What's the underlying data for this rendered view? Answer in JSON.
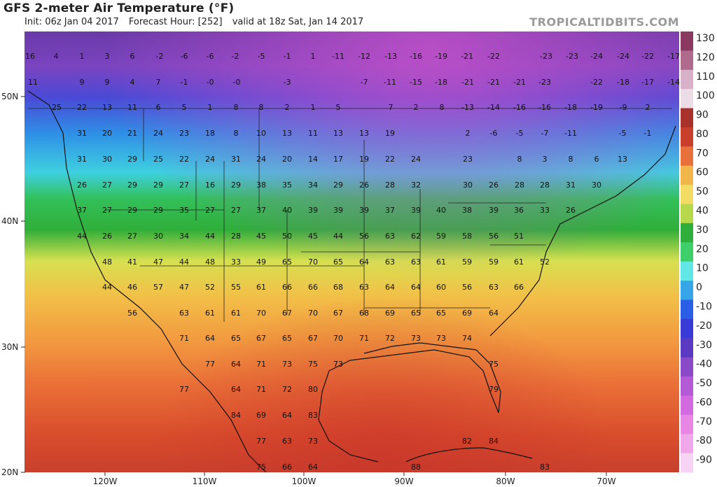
{
  "header": {
    "title": "GFS 2-meter Air Temperature (°F)",
    "init": "Init: 06z Jan 04 2017",
    "forecast_hour": "Forecast Hour: [252]",
    "valid": "valid at 18z Sat, Jan 14 2017",
    "brand": "TROPICALTIDBITS.COM"
  },
  "colorbar": {
    "ticks": [
      "130",
      "120",
      "110",
      "100",
      "90",
      "80",
      "70",
      "60",
      "50",
      "40",
      "30",
      "20",
      "10",
      "0",
      "-10",
      "-20",
      "-30",
      "-40",
      "-50",
      "-60",
      "-70",
      "-80",
      "-90"
    ],
    "colors": [
      "#8a3a60",
      "#b06a8c",
      "#d8b0c8",
      "#ecdce6",
      "#a8322b",
      "#c8402c",
      "#e8703a",
      "#f0b64a",
      "#f2dc64",
      "#b6d84a",
      "#2eae3a",
      "#3ecf6a",
      "#62e6e6",
      "#36a6e8",
      "#2a5ee6",
      "#3a3ad6",
      "#5a3ac0",
      "#8a4ac8",
      "#b45ad6",
      "#d46ae0",
      "#e886e6",
      "#f0a8ea",
      "#f8d4f4"
    ]
  },
  "axes": {
    "lat_labels": [
      "50N",
      "40N",
      "30N",
      "20N"
    ],
    "lon_labels": [
      "120W",
      "110W",
      "100W",
      "90W",
      "80W",
      "70W"
    ]
  },
  "values": [
    [
      "16",
      43,
      80
    ],
    [
      "4",
      80,
      80
    ],
    [
      "1",
      117,
      80
    ],
    [
      "3",
      153,
      80
    ],
    [
      "6",
      189,
      80
    ],
    [
      "-2",
      228,
      80
    ],
    [
      "-6",
      263,
      80
    ],
    [
      "-6",
      300,
      80
    ],
    [
      "-2",
      336,
      80
    ],
    [
      "-5",
      373,
      80
    ],
    [
      "-1",
      410,
      80
    ],
    [
      "1",
      447,
      80
    ],
    [
      "-11",
      483,
      80
    ],
    [
      "-12",
      520,
      80
    ],
    [
      "-13",
      558,
      80
    ],
    [
      "-16",
      594,
      80
    ],
    [
      "-19",
      630,
      80
    ],
    [
      "-21",
      667,
      80
    ],
    [
      "-22",
      705,
      80
    ],
    [
      "-23",
      780,
      80
    ],
    [
      "-23",
      817,
      80
    ],
    [
      "-24",
      852,
      80
    ],
    [
      "-24",
      890,
      80
    ],
    [
      "-22",
      925,
      80
    ],
    [
      "-17",
      962,
      80
    ],
    [
      "11",
      47,
      117
    ],
    [
      "9",
      117,
      117
    ],
    [
      "9",
      153,
      117
    ],
    [
      "4",
      189,
      117
    ],
    [
      "7",
      226,
      117
    ],
    [
      "-1",
      263,
      117
    ],
    [
      "-0",
      300,
      117
    ],
    [
      "-0",
      338,
      117
    ],
    [
      "-3",
      410,
      117
    ],
    [
      "-7",
      520,
      117
    ],
    [
      "-11",
      557,
      117
    ],
    [
      "-15",
      594,
      117
    ],
    [
      "-18",
      630,
      117
    ],
    [
      "-21",
      668,
      117
    ],
    [
      "-21",
      705,
      117
    ],
    [
      "-21",
      742,
      117
    ],
    [
      "-23",
      778,
      117
    ],
    [
      "-22",
      852,
      117
    ],
    [
      "-18",
      890,
      117
    ],
    [
      "-17",
      925,
      117
    ],
    [
      "-14",
      962,
      117
    ],
    [
      "25",
      81,
      153
    ],
    [
      "22",
      117,
      153
    ],
    [
      "13",
      153,
      153
    ],
    [
      "11",
      189,
      153
    ],
    [
      "6",
      226,
      153
    ],
    [
      "5",
      263,
      153
    ],
    [
      "1",
      300,
      153
    ],
    [
      "8",
      337,
      153
    ],
    [
      "8",
      373,
      153
    ],
    [
      "2",
      410,
      153
    ],
    [
      "1",
      447,
      153
    ],
    [
      "5",
      483,
      153
    ],
    [
      "7",
      558,
      153
    ],
    [
      "2",
      594,
      153
    ],
    [
      "8",
      631,
      153
    ],
    [
      "-13",
      668,
      153
    ],
    [
      "-14",
      705,
      153
    ],
    [
      "-16",
      742,
      153
    ],
    [
      "-16",
      778,
      153
    ],
    [
      "-18",
      815,
      153
    ],
    [
      "-19",
      852,
      153
    ],
    [
      "-9",
      890,
      153
    ],
    [
      "2",
      925,
      153
    ],
    [
      "31",
      117,
      190
    ],
    [
      "20",
      153,
      190
    ],
    [
      "21",
      189,
      190
    ],
    [
      "24",
      226,
      190
    ],
    [
      "23",
      263,
      190
    ],
    [
      "18",
      300,
      190
    ],
    [
      "8",
      337,
      190
    ],
    [
      "10",
      373,
      190
    ],
    [
      "13",
      410,
      190
    ],
    [
      "11",
      447,
      190
    ],
    [
      "13",
      483,
      190
    ],
    [
      "13",
      520,
      190
    ],
    [
      "19",
      557,
      190
    ],
    [
      "2",
      668,
      190
    ],
    [
      "-6",
      705,
      190
    ],
    [
      "-5",
      742,
      190
    ],
    [
      "-7",
      778,
      190
    ],
    [
      "-11",
      815,
      190
    ],
    [
      "-5",
      889,
      190
    ],
    [
      "-1",
      925,
      190
    ],
    [
      "31",
      117,
      227
    ],
    [
      "30",
      153,
      227
    ],
    [
      "29",
      189,
      227
    ],
    [
      "25",
      226,
      227
    ],
    [
      "22",
      263,
      227
    ],
    [
      "24",
      300,
      227
    ],
    [
      "31",
      337,
      227
    ],
    [
      "24",
      373,
      227
    ],
    [
      "20",
      410,
      227
    ],
    [
      "14",
      447,
      227
    ],
    [
      "17",
      483,
      227
    ],
    [
      "19",
      520,
      227
    ],
    [
      "22",
      557,
      227
    ],
    [
      "24",
      594,
      227
    ],
    [
      "23",
      668,
      227
    ],
    [
      "8",
      742,
      227
    ],
    [
      "3",
      778,
      227
    ],
    [
      "8",
      815,
      227
    ],
    [
      "6",
      852,
      227
    ],
    [
      "13",
      889,
      227
    ],
    [
      "26",
      117,
      264
    ],
    [
      "27",
      153,
      264
    ],
    [
      "29",
      189,
      264
    ],
    [
      "29",
      226,
      264
    ],
    [
      "27",
      263,
      264
    ],
    [
      "16",
      300,
      264
    ],
    [
      "29",
      337,
      264
    ],
    [
      "38",
      373,
      264
    ],
    [
      "35",
      410,
      264
    ],
    [
      "34",
      447,
      264
    ],
    [
      "29",
      483,
      264
    ],
    [
      "26",
      520,
      264
    ],
    [
      "28",
      557,
      264
    ],
    [
      "32",
      594,
      264
    ],
    [
      "30",
      668,
      264
    ],
    [
      "26",
      705,
      264
    ],
    [
      "28",
      742,
      264
    ],
    [
      "28",
      778,
      264
    ],
    [
      "31",
      815,
      264
    ],
    [
      "30",
      852,
      264
    ],
    [
      "37",
      117,
      300
    ],
    [
      "27",
      153,
      300
    ],
    [
      "29",
      189,
      300
    ],
    [
      "29",
      226,
      300
    ],
    [
      "35",
      263,
      300
    ],
    [
      "27",
      300,
      300
    ],
    [
      "27",
      337,
      300
    ],
    [
      "37",
      373,
      300
    ],
    [
      "40",
      410,
      300
    ],
    [
      "39",
      447,
      300
    ],
    [
      "39",
      483,
      300
    ],
    [
      "39",
      520,
      300
    ],
    [
      "37",
      557,
      300
    ],
    [
      "39",
      594,
      300
    ],
    [
      "40",
      630,
      300
    ],
    [
      "38",
      667,
      300
    ],
    [
      "39",
      705,
      300
    ],
    [
      "36",
      741,
      300
    ],
    [
      "33",
      778,
      300
    ],
    [
      "26",
      815,
      300
    ],
    [
      "44",
      117,
      337
    ],
    [
      "26",
      153,
      337
    ],
    [
      "27",
      189,
      337
    ],
    [
      "30",
      226,
      337
    ],
    [
      "34",
      263,
      337
    ],
    [
      "44",
      300,
      337
    ],
    [
      "28",
      337,
      337
    ],
    [
      "45",
      373,
      337
    ],
    [
      "50",
      410,
      337
    ],
    [
      "45",
      447,
      337
    ],
    [
      "44",
      483,
      337
    ],
    [
      "56",
      520,
      337
    ],
    [
      "63",
      557,
      337
    ],
    [
      "62",
      594,
      337
    ],
    [
      "59",
      630,
      337
    ],
    [
      "58",
      667,
      337
    ],
    [
      "56",
      705,
      337
    ],
    [
      "51",
      741,
      337
    ],
    [
      "48",
      153,
      374
    ],
    [
      "41",
      189,
      374
    ],
    [
      "47",
      226,
      374
    ],
    [
      "44",
      263,
      374
    ],
    [
      "48",
      300,
      374
    ],
    [
      "33",
      337,
      374
    ],
    [
      "49",
      373,
      374
    ],
    [
      "65",
      410,
      374
    ],
    [
      "70",
      447,
      374
    ],
    [
      "65",
      483,
      374
    ],
    [
      "64",
      520,
      374
    ],
    [
      "63",
      557,
      374
    ],
    [
      "63",
      594,
      374
    ],
    [
      "61",
      630,
      374
    ],
    [
      "59",
      667,
      374
    ],
    [
      "59",
      705,
      374
    ],
    [
      "61",
      741,
      374
    ],
    [
      "52",
      778,
      374
    ],
    [
      "44",
      153,
      410
    ],
    [
      "46",
      189,
      410
    ],
    [
      "57",
      226,
      410
    ],
    [
      "47",
      263,
      410
    ],
    [
      "52",
      300,
      410
    ],
    [
      "55",
      337,
      410
    ],
    [
      "61",
      373,
      410
    ],
    [
      "66",
      410,
      410
    ],
    [
      "66",
      447,
      410
    ],
    [
      "68",
      483,
      410
    ],
    [
      "63",
      520,
      410
    ],
    [
      "64",
      557,
      410
    ],
    [
      "64",
      594,
      410
    ],
    [
      "60",
      630,
      410
    ],
    [
      "56",
      667,
      410
    ],
    [
      "63",
      705,
      410
    ],
    [
      "66",
      741,
      410
    ],
    [
      "56",
      189,
      447
    ],
    [
      "63",
      263,
      447
    ],
    [
      "61",
      300,
      447
    ],
    [
      "61",
      337,
      447
    ],
    [
      "70",
      373,
      447
    ],
    [
      "67",
      410,
      447
    ],
    [
      "70",
      447,
      447
    ],
    [
      "67",
      483,
      447
    ],
    [
      "68",
      520,
      447
    ],
    [
      "69",
      557,
      447
    ],
    [
      "65",
      594,
      447
    ],
    [
      "65",
      630,
      447
    ],
    [
      "69",
      667,
      447
    ],
    [
      "64",
      705,
      447
    ],
    [
      "71",
      263,
      483
    ],
    [
      "64",
      300,
      483
    ],
    [
      "65",
      337,
      483
    ],
    [
      "67",
      373,
      483
    ],
    [
      "65",
      410,
      483
    ],
    [
      "67",
      447,
      483
    ],
    [
      "70",
      483,
      483
    ],
    [
      "71",
      520,
      483
    ],
    [
      "72",
      557,
      483
    ],
    [
      "73",
      594,
      483
    ],
    [
      "73",
      630,
      483
    ],
    [
      "74",
      667,
      483
    ],
    [
      "77",
      300,
      520
    ],
    [
      "64",
      337,
      520
    ],
    [
      "71",
      373,
      520
    ],
    [
      "73",
      410,
      520
    ],
    [
      "75",
      447,
      520
    ],
    [
      "73",
      483,
      520
    ],
    [
      "75",
      705,
      520
    ],
    [
      "77",
      263,
      556
    ],
    [
      "64",
      337,
      556
    ],
    [
      "71",
      373,
      556
    ],
    [
      "72",
      410,
      556
    ],
    [
      "80",
      447,
      556
    ],
    [
      "79",
      705,
      556
    ],
    [
      "84",
      337,
      593
    ],
    [
      "69",
      373,
      593
    ],
    [
      "64",
      410,
      593
    ],
    [
      "83",
      447,
      593
    ],
    [
      "77",
      373,
      630
    ],
    [
      "63",
      410,
      630
    ],
    [
      "73",
      447,
      630
    ],
    [
      "82",
      667,
      630
    ],
    [
      "84",
      705,
      630
    ],
    [
      "75",
      373,
      667
    ],
    [
      "66",
      410,
      667
    ],
    [
      "64",
      447,
      667
    ],
    [
      "88",
      594,
      667
    ],
    [
      "83",
      778,
      667
    ]
  ]
}
